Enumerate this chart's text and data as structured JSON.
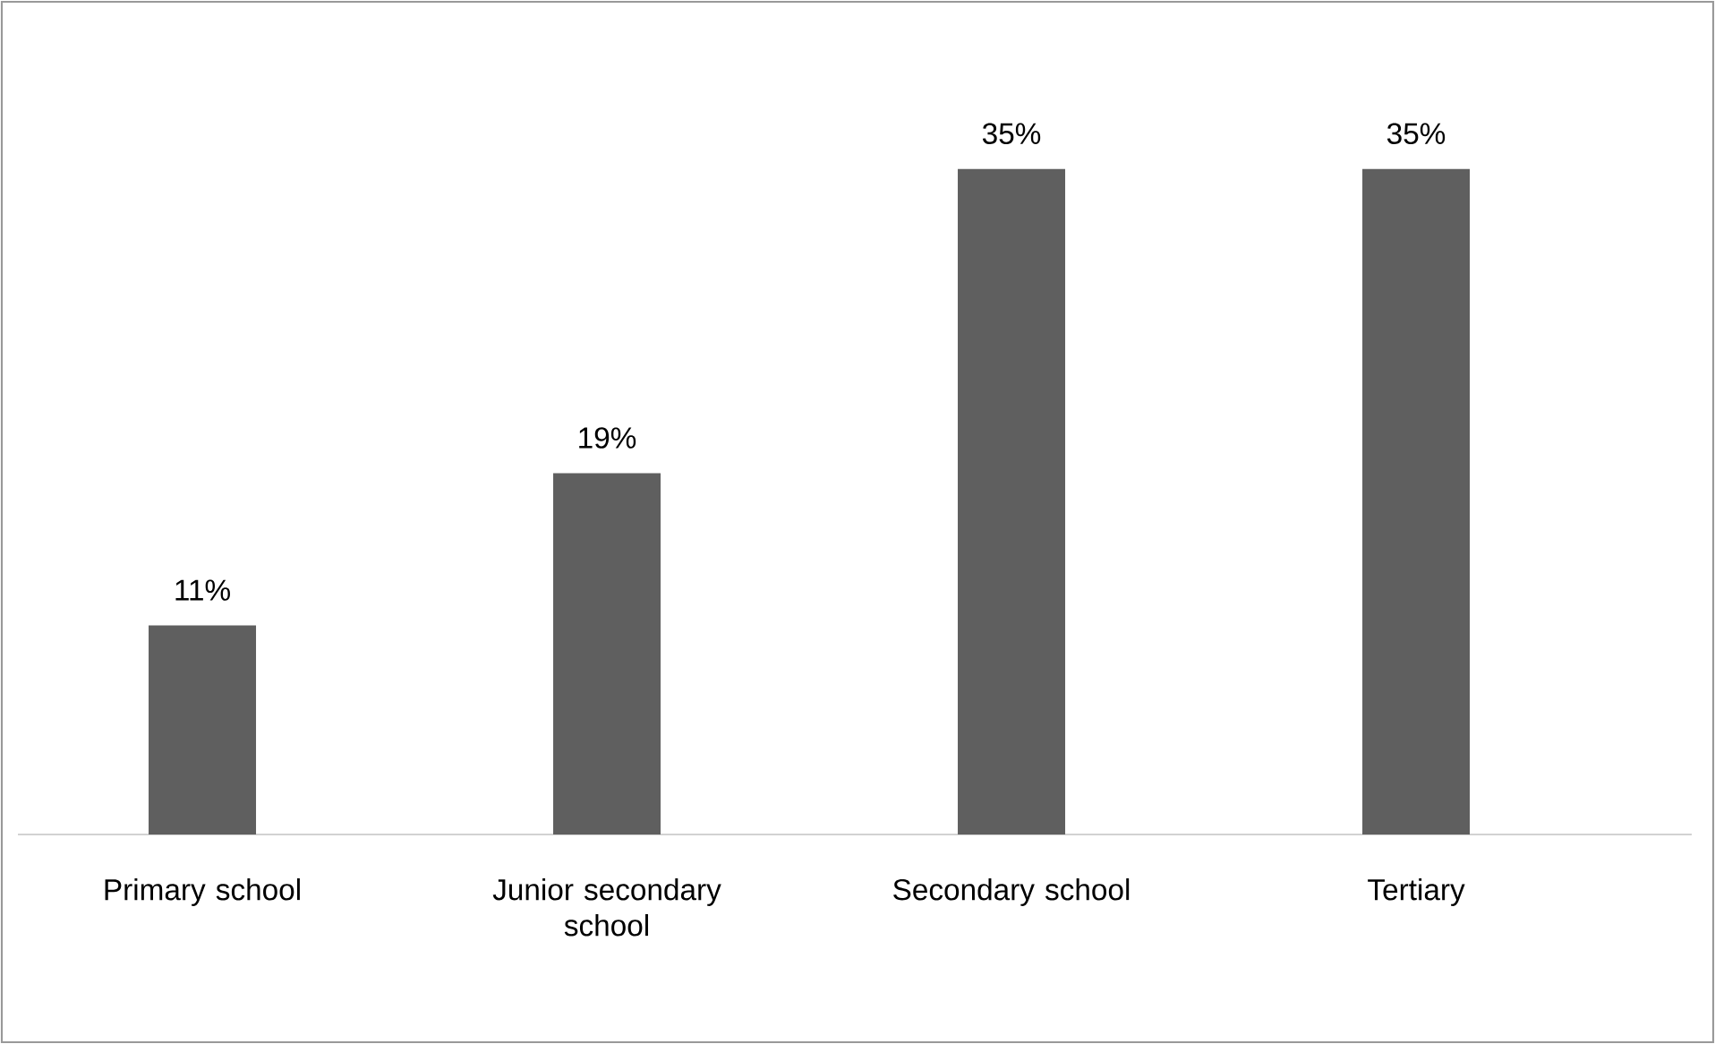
{
  "chart_data": {
    "type": "bar",
    "categories": [
      "Primary school",
      "Junior secondary school",
      "Secondary school",
      "Tertiary"
    ],
    "values": [
      11,
      19,
      35,
      35
    ],
    "value_labels": [
      "11%",
      "19%",
      "35%",
      "35%"
    ],
    "color": "#5f5f5f"
  }
}
